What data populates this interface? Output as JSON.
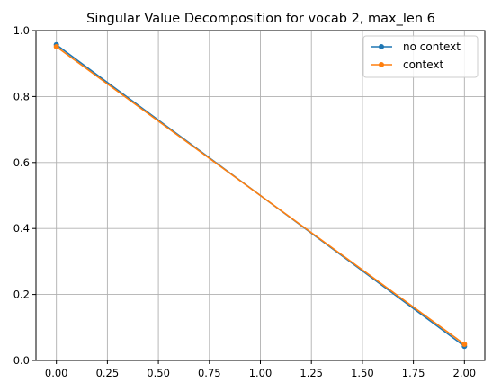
{
  "chart_data": {
    "type": "line",
    "title": "Singular Value Decomposition for vocab 2, max_len 6",
    "xlabel": "",
    "ylabel": "",
    "xlim": [
      -0.1,
      2.1
    ],
    "ylim": [
      0.0,
      1.0
    ],
    "xticks": [
      "0.00",
      "0.25",
      "0.50",
      "0.75",
      "1.00",
      "1.25",
      "1.50",
      "1.75",
      "2.00"
    ],
    "yticks": [
      "0.0",
      "0.2",
      "0.4",
      "0.6",
      "0.8",
      "1.0"
    ],
    "grid": true,
    "legend_position": "top-right",
    "series": [
      {
        "name": "no context",
        "color": "#1f77b4",
        "x": [
          0,
          2
        ],
        "y": [
          0.957,
          0.043
        ]
      },
      {
        "name": "context",
        "color": "#ff7f0e",
        "x": [
          0,
          2
        ],
        "y": [
          0.951,
          0.049
        ]
      }
    ]
  }
}
